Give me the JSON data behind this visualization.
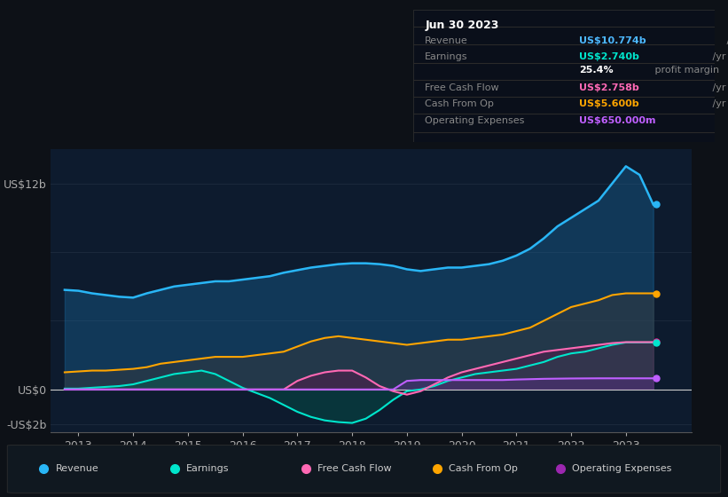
{
  "bg_color": "#0d1117",
  "chart_bg": "#0d1b2e",
  "grid_color": "#1e2d40",
  "ylim": [
    -2.5,
    14
  ],
  "xlim": [
    2012.5,
    2024.2
  ],
  "xtick_years": [
    2013,
    2014,
    2015,
    2016,
    2017,
    2018,
    2019,
    2020,
    2021,
    2022,
    2023
  ],
  "info_box": {
    "title": "Jun 30 2023",
    "rows": [
      {
        "label": "Revenue",
        "value": "US$10.774b",
        "suffix": " /yr",
        "value_color": "#4db8ff"
      },
      {
        "label": "Earnings",
        "value": "US$2.740b",
        "suffix": " /yr",
        "value_color": "#00e5cc"
      },
      {
        "label": "",
        "value": "25.4%",
        "suffix": " profit margin",
        "value_color": "#ffffff"
      },
      {
        "label": "Free Cash Flow",
        "value": "US$2.758b",
        "suffix": " /yr",
        "value_color": "#ff69b4"
      },
      {
        "label": "Cash From Op",
        "value": "US$5.600b",
        "suffix": " /yr",
        "value_color": "#ffa500"
      },
      {
        "label": "Operating Expenses",
        "value": "US$650.000m",
        "suffix": " /yr",
        "value_color": "#bf5fff"
      }
    ]
  },
  "legend": [
    {
      "label": "Revenue",
      "color": "#29b6f6"
    },
    {
      "label": "Earnings",
      "color": "#00e5cc"
    },
    {
      "label": "Free Cash Flow",
      "color": "#ff69b4"
    },
    {
      "label": "Cash From Op",
      "color": "#ffa500"
    },
    {
      "label": "Operating Expenses",
      "color": "#9c27b0"
    }
  ],
  "series": {
    "years": [
      2012.75,
      2013.0,
      2013.25,
      2013.5,
      2013.75,
      2014.0,
      2014.25,
      2014.5,
      2014.75,
      2015.0,
      2015.25,
      2015.5,
      2015.75,
      2016.0,
      2016.25,
      2016.5,
      2016.75,
      2017.0,
      2017.25,
      2017.5,
      2017.75,
      2018.0,
      2018.25,
      2018.5,
      2018.75,
      2019.0,
      2019.25,
      2019.5,
      2019.75,
      2020.0,
      2020.25,
      2020.5,
      2020.75,
      2021.0,
      2021.25,
      2021.5,
      2021.75,
      2022.0,
      2022.25,
      2022.5,
      2022.75,
      2023.0,
      2023.25,
      2023.5
    ],
    "revenue": [
      5.8,
      5.75,
      5.6,
      5.5,
      5.4,
      5.35,
      5.6,
      5.8,
      6.0,
      6.1,
      6.2,
      6.3,
      6.3,
      6.4,
      6.5,
      6.6,
      6.8,
      6.95,
      7.1,
      7.2,
      7.3,
      7.35,
      7.35,
      7.3,
      7.2,
      7.0,
      6.9,
      7.0,
      7.1,
      7.1,
      7.2,
      7.3,
      7.5,
      7.8,
      8.2,
      8.8,
      9.5,
      10.0,
      10.5,
      11.0,
      12.0,
      13.0,
      12.5,
      10.77
    ],
    "earnings": [
      0.05,
      0.05,
      0.1,
      0.15,
      0.2,
      0.3,
      0.5,
      0.7,
      0.9,
      1.0,
      1.1,
      0.9,
      0.5,
      0.1,
      -0.2,
      -0.5,
      -0.9,
      -1.3,
      -1.6,
      -1.8,
      -1.9,
      -1.95,
      -1.7,
      -1.2,
      -0.6,
      -0.1,
      0.0,
      0.2,
      0.5,
      0.7,
      0.9,
      1.0,
      1.1,
      1.2,
      1.4,
      1.6,
      1.9,
      2.1,
      2.2,
      2.4,
      2.6,
      2.74,
      2.74,
      2.74
    ],
    "free_cash": [
      0.0,
      0.0,
      0.0,
      0.0,
      0.0,
      0.0,
      0.0,
      0.0,
      0.0,
      0.0,
      0.0,
      0.0,
      0.0,
      0.0,
      0.0,
      0.0,
      0.0,
      0.5,
      0.8,
      1.0,
      1.1,
      1.1,
      0.7,
      0.2,
      -0.1,
      -0.3,
      -0.1,
      0.3,
      0.7,
      1.0,
      1.2,
      1.4,
      1.6,
      1.8,
      2.0,
      2.2,
      2.3,
      2.4,
      2.5,
      2.6,
      2.7,
      2.758,
      2.758,
      2.758
    ],
    "cash_op": [
      1.0,
      1.05,
      1.1,
      1.1,
      1.15,
      1.2,
      1.3,
      1.5,
      1.6,
      1.7,
      1.8,
      1.9,
      1.9,
      1.9,
      2.0,
      2.1,
      2.2,
      2.5,
      2.8,
      3.0,
      3.1,
      3.0,
      2.9,
      2.8,
      2.7,
      2.6,
      2.7,
      2.8,
      2.9,
      2.9,
      3.0,
      3.1,
      3.2,
      3.4,
      3.6,
      4.0,
      4.4,
      4.8,
      5.0,
      5.2,
      5.5,
      5.6,
      5.6,
      5.6
    ],
    "opex": [
      0.0,
      0.0,
      0.0,
      0.0,
      0.0,
      0.0,
      0.0,
      0.0,
      0.0,
      0.0,
      0.0,
      0.0,
      0.0,
      0.0,
      0.0,
      0.0,
      0.0,
      0.0,
      0.0,
      0.0,
      0.0,
      0.0,
      0.0,
      0.0,
      0.0,
      0.5,
      0.55,
      0.55,
      0.55,
      0.55,
      0.55,
      0.55,
      0.55,
      0.58,
      0.6,
      0.62,
      0.63,
      0.64,
      0.645,
      0.65,
      0.65,
      0.65,
      0.65,
      0.65
    ]
  }
}
